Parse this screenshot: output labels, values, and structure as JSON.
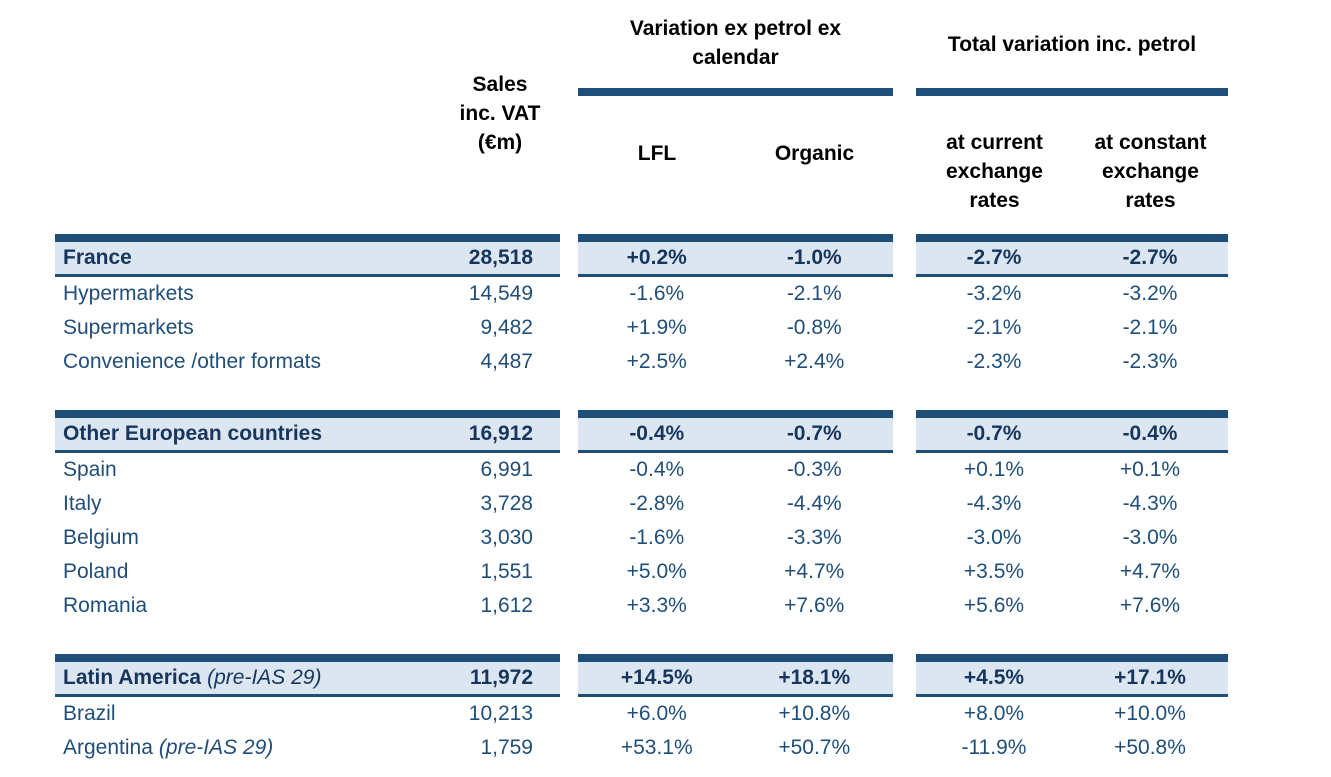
{
  "colors": {
    "navy_bar": "#1F4E79",
    "band_background": "#DCE6F1",
    "data_text": "#1F4E79",
    "band_text": "#17365D",
    "header_text": "#000000"
  },
  "header": {
    "sales_title_lines": [
      "Sales",
      "inc. VAT",
      "(€m)"
    ],
    "group_ex_petrol": {
      "title_line1": "Variation ex petrol ex",
      "title_line2": "calendar",
      "col_lfl": "LFL",
      "col_organic": "Organic"
    },
    "group_total": {
      "title": "Total variation inc. petrol",
      "col_current": "at current exchange rates",
      "col_constant": "at constant exchange rates"
    }
  },
  "sections": [
    {
      "total": {
        "label": "France",
        "sales": "28,518",
        "lfl": "+0.2%",
        "organic": "-1.0%",
        "current": "-2.7%",
        "constant": "-2.7%"
      },
      "rows": [
        {
          "label": "Hypermarkets",
          "sales": "14,549",
          "lfl": "-1.6%",
          "organic": "-2.1%",
          "current": "-3.2%",
          "constant": "-3.2%"
        },
        {
          "label": "Supermarkets",
          "sales": "9,482",
          "lfl": "+1.9%",
          "organic": "-0.8%",
          "current": "-2.1%",
          "constant": "-2.1%"
        },
        {
          "label": "Convenience /other formats",
          "sales": "4,487",
          "lfl": "+2.5%",
          "organic": "+2.4%",
          "current": "-2.3%",
          "constant": "-2.3%"
        }
      ]
    },
    {
      "total": {
        "label": "Other European countries",
        "sales": "16,912",
        "lfl": "-0.4%",
        "organic": "-0.7%",
        "current": "-0.7%",
        "constant": "-0.4%"
      },
      "rows": [
        {
          "label": "Spain",
          "sales": "6,991",
          "lfl": "-0.4%",
          "organic": "-0.3%",
          "current": "+0.1%",
          "constant": "+0.1%"
        },
        {
          "label": "Italy",
          "sales": "3,728",
          "lfl": "-2.8%",
          "organic": "-4.4%",
          "current": "-4.3%",
          "constant": "-4.3%"
        },
        {
          "label": "Belgium",
          "sales": "3,030",
          "lfl": "-1.6%",
          "organic": "-3.3%",
          "current": "-3.0%",
          "constant": "-3.0%"
        },
        {
          "label": "Poland",
          "sales": "1,551",
          "lfl": "+5.0%",
          "organic": "+4.7%",
          "current": "+3.5%",
          "constant": "+4.7%"
        },
        {
          "label": "Romania",
          "sales": "1,612",
          "lfl": "+3.3%",
          "organic": "+7.6%",
          "current": "+5.6%",
          "constant": "+7.6%"
        }
      ]
    },
    {
      "total": {
        "label": "Latin America",
        "note": "(pre-IAS 29)",
        "sales": "11,972",
        "lfl": "+14.5%",
        "organic": "+18.1%",
        "current": "+4.5%",
        "constant": "+17.1%"
      },
      "rows": [
        {
          "label": "Brazil",
          "sales": "10,213",
          "lfl": "+6.0%",
          "organic": "+10.8%",
          "current": "+8.0%",
          "constant": "+10.0%"
        },
        {
          "label": "Argentina",
          "note": "(pre-IAS 29)",
          "sales": "1,759",
          "lfl": "+53.1%",
          "organic": "+50.7%",
          "current": "-11.9%",
          "constant": "+50.8%"
        }
      ]
    }
  ]
}
